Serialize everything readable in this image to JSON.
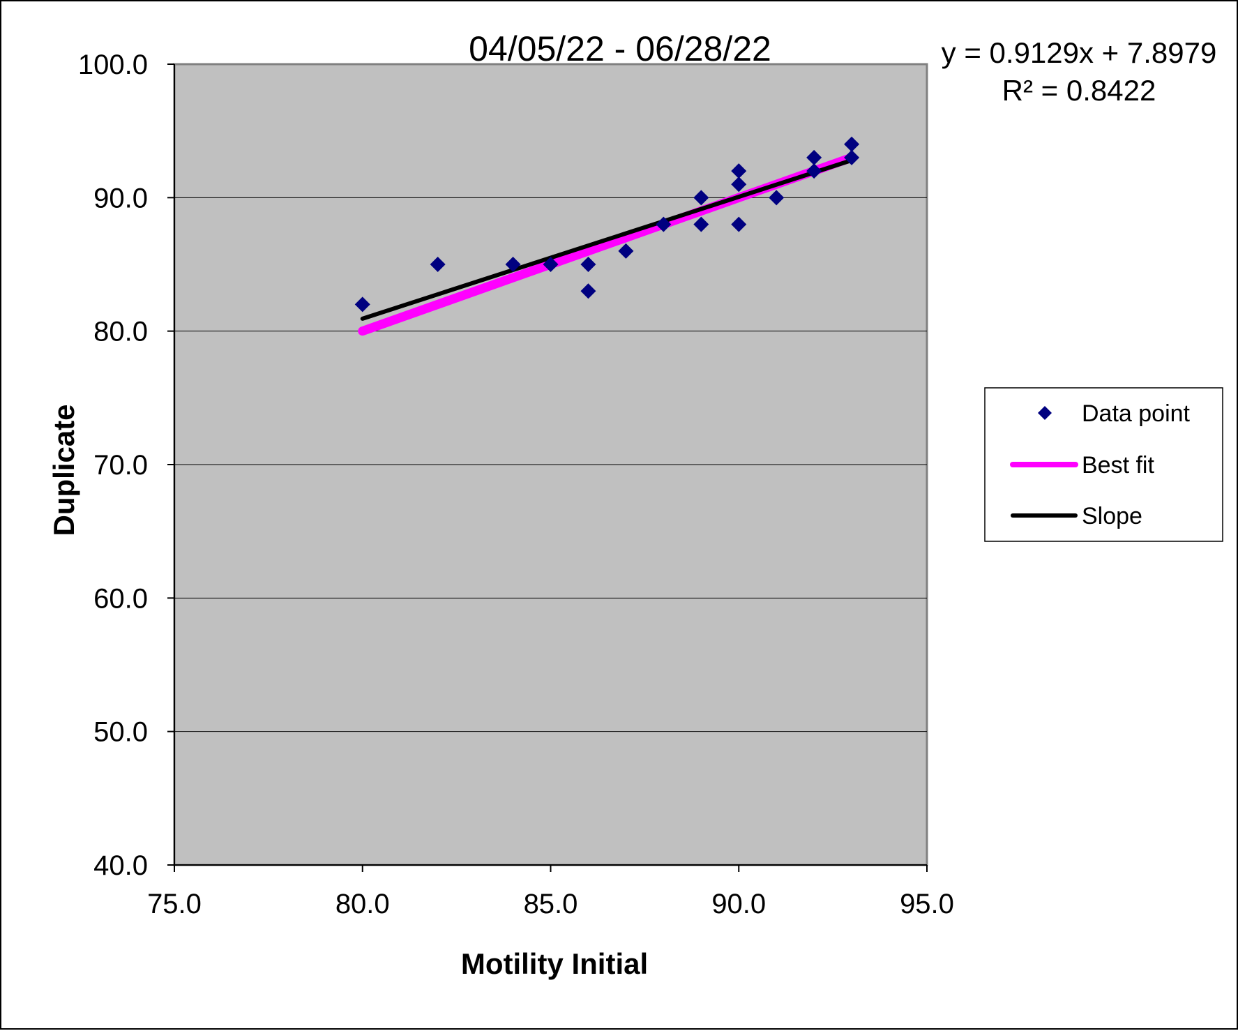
{
  "chart_data": {
    "type": "scatter",
    "title": "04/05/22 - 06/28/22",
    "xlabel": "Motility Initial",
    "ylabel": "Duplicate",
    "xlim": [
      75,
      95
    ],
    "ylim": [
      40,
      100
    ],
    "x_ticks": [
      "75.0",
      "80.0",
      "85.0",
      "90.0",
      "95.0"
    ],
    "y_ticks": [
      "40.0",
      "50.0",
      "60.0",
      "70.0",
      "80.0",
      "90.0",
      "100.0"
    ],
    "grid": "horizontal",
    "plot_background": "#c0c0c0",
    "legend_position": "right",
    "equation": "y = 0.9129x + 7.8979",
    "r_squared": "R² = 0.8422",
    "series": [
      {
        "name": "Data point",
        "kind": "scatter",
        "marker": "diamond",
        "color": "#000080",
        "points": [
          [
            80,
            82
          ],
          [
            82,
            85
          ],
          [
            84,
            85
          ],
          [
            85,
            85
          ],
          [
            86,
            85
          ],
          [
            86,
            83
          ],
          [
            87,
            86
          ],
          [
            88,
            88
          ],
          [
            89,
            90
          ],
          [
            89,
            88
          ],
          [
            90,
            92
          ],
          [
            90,
            91
          ],
          [
            90,
            88
          ],
          [
            91,
            90
          ],
          [
            92,
            93
          ],
          [
            92,
            92
          ],
          [
            93,
            94
          ],
          [
            93,
            93
          ]
        ]
      },
      {
        "name": "Best fit",
        "kind": "line",
        "color": "#ff00ff",
        "points": [
          [
            80,
            80
          ],
          [
            93,
            93
          ]
        ]
      },
      {
        "name": "Slope",
        "kind": "line",
        "color": "#000000",
        "points": [
          [
            80,
            80.93
          ],
          [
            93,
            92.8
          ]
        ]
      }
    ]
  }
}
